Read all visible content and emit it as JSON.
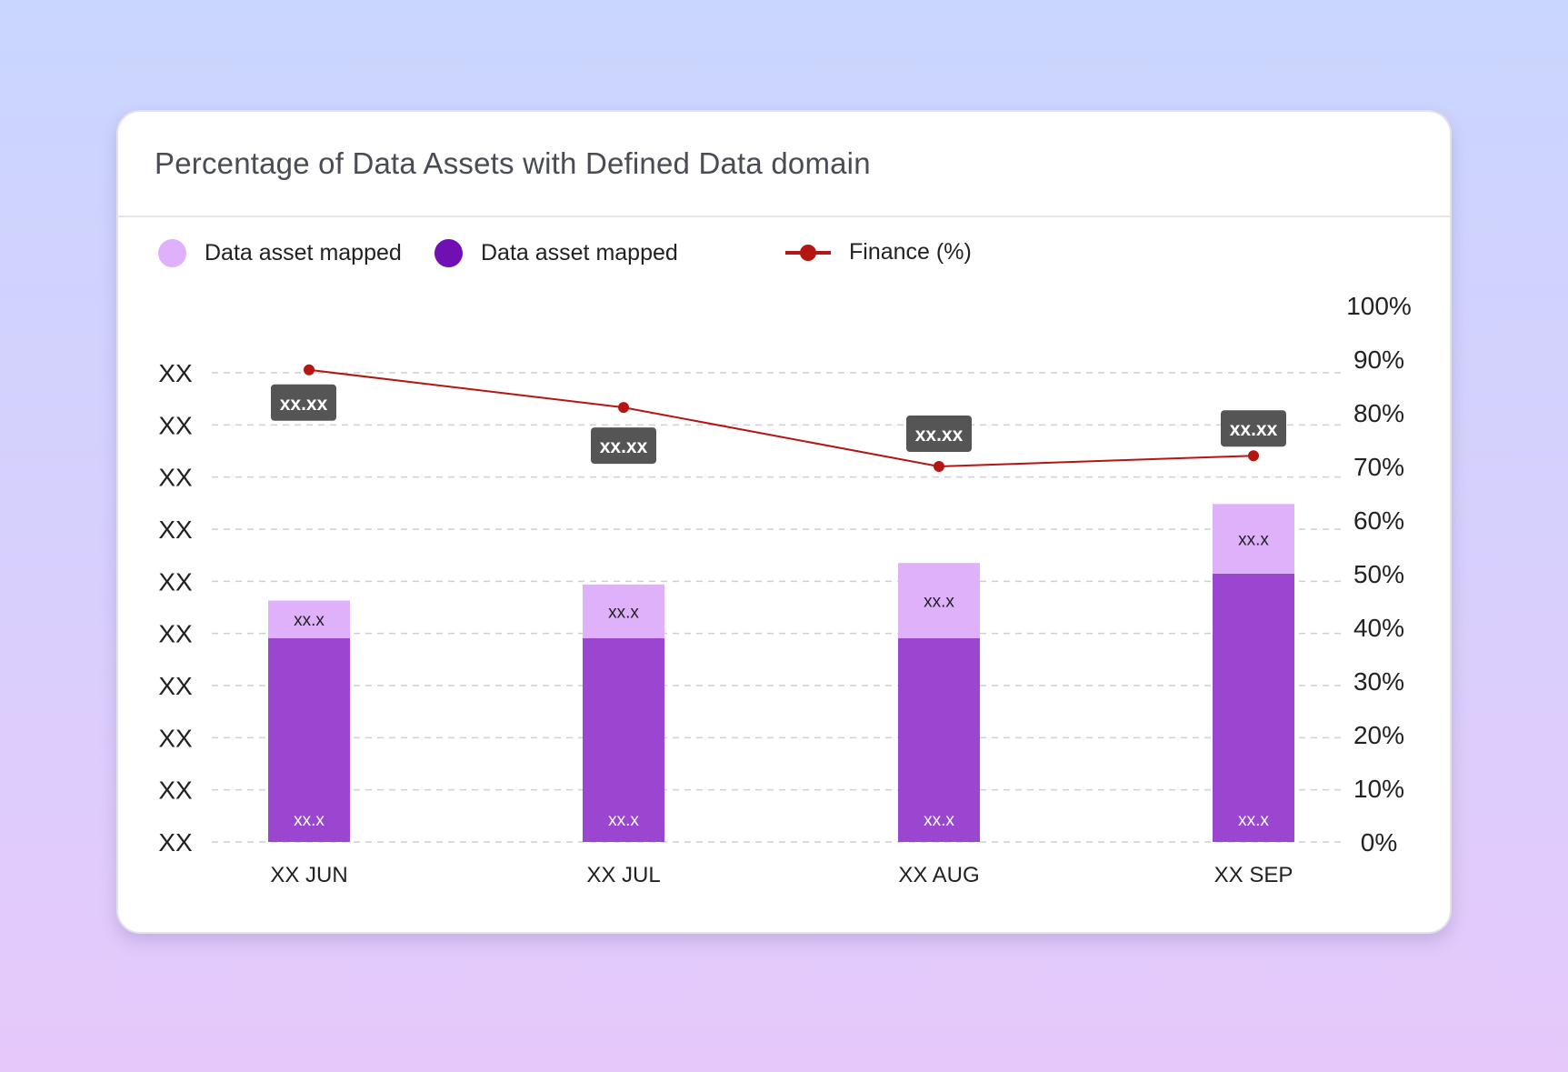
{
  "title": "Percentage of Data Assets with Defined Data domain",
  "legend": [
    {
      "label": "Data asset mapped",
      "color": "#dfb1fb",
      "kind": "dot"
    },
    {
      "label": "Data asset mapped",
      "color": "#7010b4",
      "kind": "dot"
    },
    {
      "label": "Finance (%)",
      "color": "#b41612",
      "kind": "line"
    }
  ],
  "colors": {
    "bar_top": "#dfb1fb",
    "bar_bottom": "#9a46d0",
    "line": "#b41612",
    "badge": "#555555",
    "gridline": "#cfcfd4",
    "axis_text": "#222222"
  },
  "chart_data": {
    "type": "bar",
    "stacked": true,
    "categories": [
      "XX JUN",
      "XX JUL",
      "XX AUG",
      "XX SEP"
    ],
    "left_axis_ticks": [
      "XX",
      "XX",
      "XX",
      "XX",
      "XX",
      "XX",
      "XX",
      "XX",
      "XX",
      "XX"
    ],
    "right_axis_ticks": [
      "0%",
      "10%",
      "20%",
      "30%",
      "40%",
      "50%",
      "60%",
      "70%",
      "80%",
      "90%",
      "100%"
    ],
    "ylim": [
      0,
      100
    ],
    "series": [
      {
        "name": "Data asset mapped",
        "color": "#9a46d0",
        "values": [
          38,
          38,
          38,
          50
        ],
        "labels": [
          "xx.x",
          "xx.x",
          "xx.x",
          "xx.x"
        ]
      },
      {
        "name": "Data asset mapped",
        "color": "#dfb1fb",
        "values": [
          7,
          10,
          14,
          13
        ],
        "labels": [
          "xx.x",
          "xx.x",
          "xx.x",
          "xx.x"
        ]
      }
    ],
    "line": {
      "name": "Finance (%)",
      "color": "#b41612",
      "values": [
        88,
        81,
        70,
        72
      ],
      "labels": [
        "xx.xx",
        "xx.xx",
        "xx.xx",
        "xx.xx"
      ]
    },
    "grid": true,
    "legend_position": "top-left"
  }
}
